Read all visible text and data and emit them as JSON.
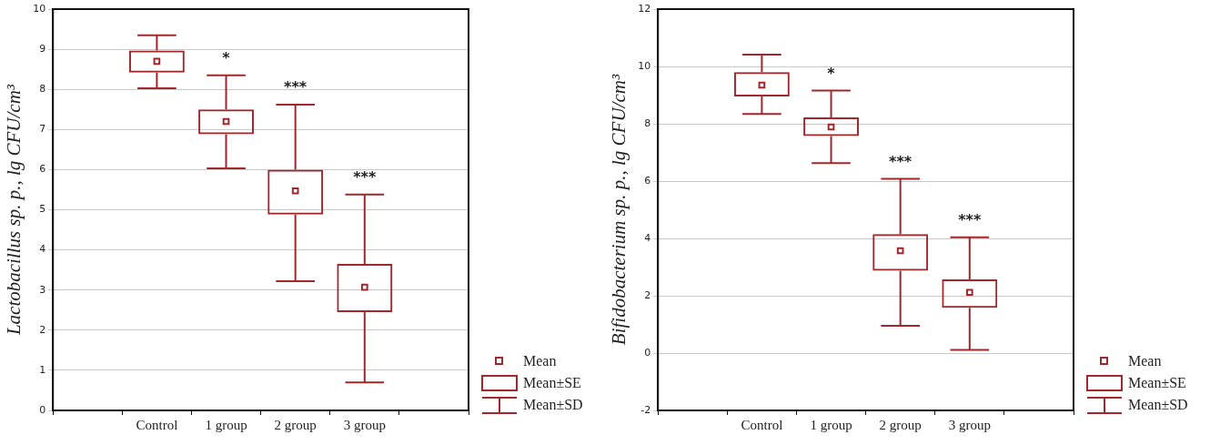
{
  "chart_data": [
    {
      "type": "box",
      "ylabel": "Lactobacillus sp. p., lg CFU/cm³",
      "categories": [
        null,
        "Control",
        "1 group",
        "2 group",
        "3 group",
        null
      ],
      "ylim": [
        0,
        10
      ],
      "yticks": [
        0,
        1,
        2,
        3,
        4,
        5,
        6,
        7,
        8,
        9,
        10
      ],
      "grid": "y",
      "series": [
        {
          "color": "#a0282d",
          "boxes": [
            null,
            {
              "low": 8.03,
              "q1": 8.42,
              "median": 8.7,
              "q3": 8.97,
              "high": 9.35
            },
            {
              "low": 6.03,
              "q1": 6.88,
              "median": 7.2,
              "q3": 7.5,
              "high": 8.35
            },
            {
              "low": 3.22,
              "q1": 4.88,
              "median": 5.47,
              "q3": 6.0,
              "high": 7.62
            },
            {
              "low": 0.7,
              "q1": 2.45,
              "median": 3.07,
              "q3": 3.65,
              "high": 5.38
            },
            null
          ]
        }
      ],
      "annotations": [
        {
          "text": "*",
          "x": "1 group",
          "y": 8.35
        },
        {
          "text": "***",
          "x": "2 group",
          "y": 7.62
        },
        {
          "text": "***",
          "x": "3 group",
          "y": 5.38
        },
        "Mean",
        "Mean±SE",
        "Mean±SD"
      ]
    },
    {
      "type": "box",
      "ylabel": "Bifidobacterium sp. p., lg CFU/cm³",
      "categories": [
        null,
        "Control",
        "1 group",
        "2 group",
        "3 group",
        null
      ],
      "ylim": [
        -2,
        12
      ],
      "yticks": [
        -2,
        0,
        2,
        4,
        6,
        8,
        10,
        12
      ],
      "grid": "y",
      "series": [
        {
          "color": "#a0282d",
          "boxes": [
            null,
            {
              "low": 8.34,
              "q1": 8.95,
              "median": 9.35,
              "q3": 9.8,
              "high": 10.41
            },
            {
              "low": 6.63,
              "q1": 7.57,
              "median": 7.89,
              "q3": 8.22,
              "high": 9.16
            },
            {
              "low": 0.95,
              "q1": 2.87,
              "median": 3.57,
              "q3": 4.15,
              "high": 6.08
            },
            {
              "low": 0.11,
              "q1": 1.58,
              "median": 2.12,
              "q3": 2.57,
              "high": 4.04
            },
            null
          ]
        }
      ],
      "annotations": [
        {
          "text": "*",
          "x": "1 group",
          "y": 9.16
        },
        {
          "text": "***",
          "x": "2 group",
          "y": 6.08
        },
        {
          "text": "***",
          "x": "3 group",
          "y": 4.04
        },
        "Mean",
        "Mean±SE",
        "Mean±SD"
      ]
    }
  ]
}
